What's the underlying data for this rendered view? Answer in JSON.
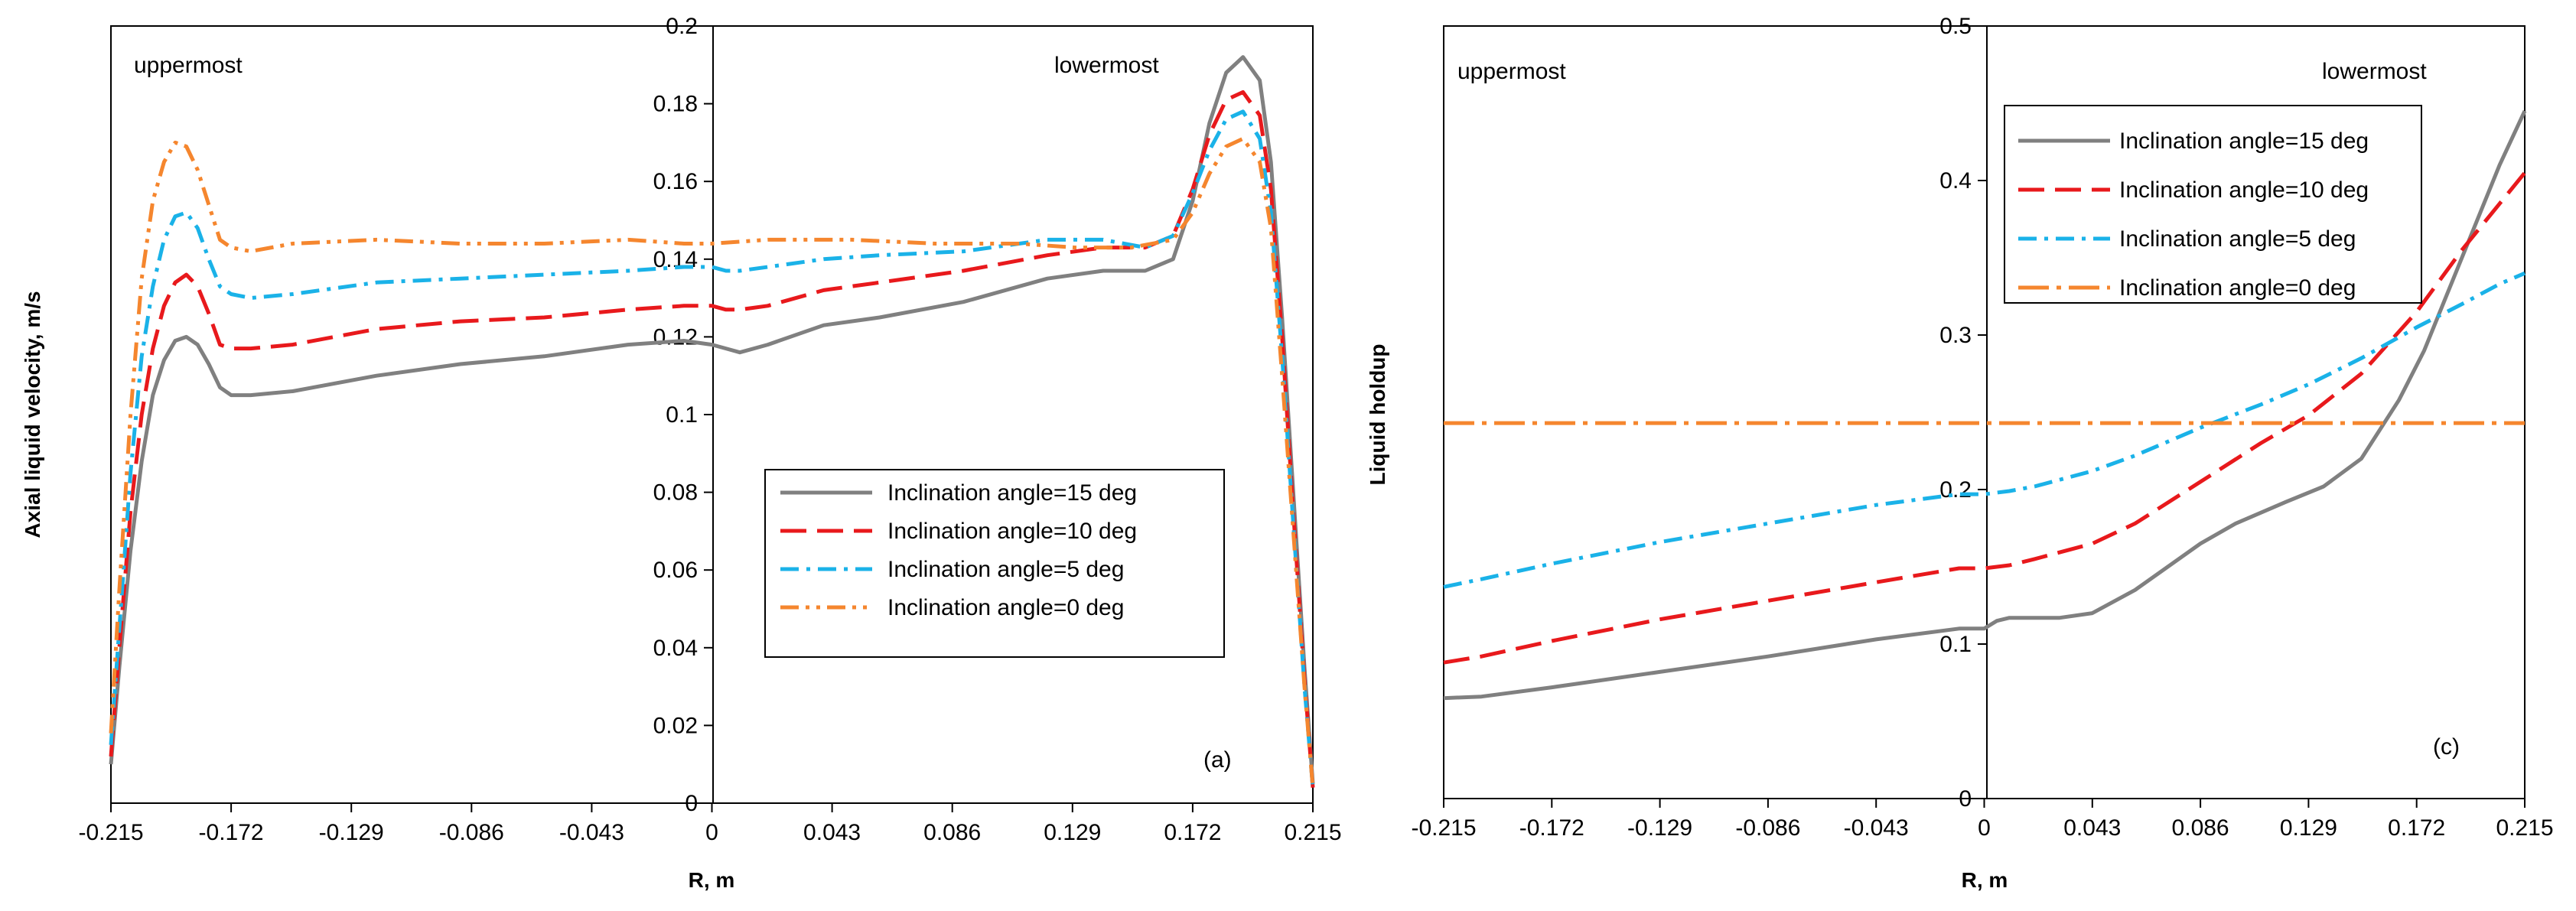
{
  "chart_data": [
    {
      "type": "line",
      "panel_label": "(a)",
      "xlabel": "R, m",
      "ylabel": "Axial liquid  velocity, m/s",
      "xlim": [
        -0.215,
        0.215
      ],
      "ylim": [
        0,
        0.2
      ],
      "xticks": [
        "-0.215",
        "-0.172",
        "-0.129",
        "-0.086",
        "-0.043",
        "0",
        "0.043",
        "0.086",
        "0.129",
        "0.172",
        "0.215"
      ],
      "yticks": [
        "0",
        "0.02",
        "0.04",
        "0.06",
        "0.08",
        "0.1",
        "0.12",
        "0.14",
        "0.16",
        "0.18",
        "0.2"
      ],
      "annotations": [
        "uppermost",
        "lowermost"
      ],
      "legend_position": "center-right",
      "series": [
        {
          "name": "Inclination angle=15 deg",
          "color": "#808080",
          "dash": "solid",
          "x": [
            -0.215,
            -0.212,
            -0.208,
            -0.204,
            -0.2,
            -0.196,
            -0.192,
            -0.188,
            -0.184,
            -0.18,
            -0.176,
            -0.172,
            -0.165,
            -0.15,
            -0.12,
            -0.09,
            -0.06,
            -0.03,
            -0.01,
            0,
            0.005,
            0.01,
            0.02,
            0.04,
            0.06,
            0.09,
            0.12,
            0.14,
            0.155,
            0.165,
            0.172,
            0.178,
            0.184,
            0.19,
            0.196,
            0.2,
            0.204,
            0.208,
            0.212,
            0.215
          ],
          "y": [
            0.01,
            0.035,
            0.065,
            0.088,
            0.105,
            0.114,
            0.119,
            0.12,
            0.118,
            0.113,
            0.107,
            0.105,
            0.105,
            0.106,
            0.11,
            0.113,
            0.115,
            0.118,
            0.119,
            0.118,
            0.117,
            0.116,
            0.118,
            0.123,
            0.125,
            0.129,
            0.135,
            0.137,
            0.137,
            0.14,
            0.155,
            0.175,
            0.188,
            0.192,
            0.186,
            0.165,
            0.125,
            0.08,
            0.035,
            0.005
          ]
        },
        {
          "name": "Inclination angle=10 deg",
          "color": "#e8191c",
          "dash": "long-dash",
          "x": [
            -0.215,
            -0.212,
            -0.208,
            -0.204,
            -0.2,
            -0.196,
            -0.192,
            -0.188,
            -0.184,
            -0.18,
            -0.176,
            -0.172,
            -0.165,
            -0.15,
            -0.12,
            -0.09,
            -0.06,
            -0.03,
            -0.01,
            0,
            0.005,
            0.01,
            0.02,
            0.04,
            0.06,
            0.09,
            0.12,
            0.14,
            0.155,
            0.165,
            0.172,
            0.178,
            0.184,
            0.19,
            0.196,
            0.2,
            0.204,
            0.208,
            0.212,
            0.215
          ],
          "y": [
            0.012,
            0.04,
            0.075,
            0.1,
            0.117,
            0.128,
            0.134,
            0.136,
            0.133,
            0.126,
            0.118,
            0.117,
            0.117,
            0.118,
            0.122,
            0.124,
            0.125,
            0.127,
            0.128,
            0.128,
            0.127,
            0.127,
            0.128,
            0.132,
            0.134,
            0.137,
            0.141,
            0.143,
            0.143,
            0.146,
            0.158,
            0.172,
            0.181,
            0.183,
            0.177,
            0.158,
            0.12,
            0.075,
            0.032,
            0.004
          ]
        },
        {
          "name": "Inclination angle=5 deg",
          "color": "#1ab2e8",
          "dash": "dash-dot",
          "x": [
            -0.215,
            -0.212,
            -0.208,
            -0.204,
            -0.2,
            -0.196,
            -0.192,
            -0.188,
            -0.184,
            -0.18,
            -0.176,
            -0.172,
            -0.165,
            -0.15,
            -0.12,
            -0.09,
            -0.06,
            -0.03,
            -0.01,
            0,
            0.005,
            0.01,
            0.02,
            0.04,
            0.06,
            0.09,
            0.12,
            0.14,
            0.155,
            0.165,
            0.172,
            0.178,
            0.184,
            0.19,
            0.196,
            0.2,
            0.204,
            0.208,
            0.212,
            0.215
          ],
          "y": [
            0.015,
            0.045,
            0.085,
            0.115,
            0.133,
            0.145,
            0.151,
            0.152,
            0.148,
            0.14,
            0.133,
            0.131,
            0.13,
            0.131,
            0.134,
            0.135,
            0.136,
            0.137,
            0.138,
            0.138,
            0.137,
            0.137,
            0.138,
            0.14,
            0.141,
            0.142,
            0.145,
            0.145,
            0.143,
            0.146,
            0.157,
            0.168,
            0.176,
            0.178,
            0.171,
            0.152,
            0.115,
            0.072,
            0.03,
            0.004
          ]
        },
        {
          "name": "Inclination angle=0 deg",
          "color": "#f5862e",
          "dash": "dash-dot-dot",
          "x": [
            -0.215,
            -0.212,
            -0.208,
            -0.204,
            -0.2,
            -0.196,
            -0.192,
            -0.188,
            -0.184,
            -0.18,
            -0.176,
            -0.172,
            -0.165,
            -0.15,
            -0.12,
            -0.09,
            -0.06,
            -0.03,
            -0.01,
            0,
            0.02,
            0.05,
            0.08,
            0.11,
            0.13,
            0.15,
            0.165,
            0.172,
            0.178,
            0.184,
            0.19,
            0.196,
            0.2,
            0.204,
            0.208,
            0.212,
            0.215
          ],
          "y": [
            0.018,
            0.055,
            0.1,
            0.135,
            0.155,
            0.165,
            0.17,
            0.169,
            0.163,
            0.154,
            0.145,
            0.143,
            0.142,
            0.144,
            0.145,
            0.144,
            0.144,
            0.145,
            0.144,
            0.144,
            0.145,
            0.145,
            0.144,
            0.144,
            0.143,
            0.143,
            0.145,
            0.152,
            0.162,
            0.169,
            0.171,
            0.165,
            0.148,
            0.11,
            0.07,
            0.03,
            0.004
          ]
        }
      ]
    },
    {
      "type": "line",
      "panel_label": "(c)",
      "xlabel": "R, m",
      "ylabel": "Liquid holdup",
      "xlim": [
        -0.215,
        0.215
      ],
      "ylim": [
        0,
        0.5
      ],
      "xticks": [
        "-0.215",
        "-0.172",
        "-0.129",
        "-0.086",
        "-0.043",
        "0",
        "0.043",
        "0.086",
        "0.129",
        "0.172",
        "0.215"
      ],
      "yticks": [
        "0",
        "0.1",
        "0.2",
        "0.3",
        "0.4",
        "0.5"
      ],
      "annotations": [
        "uppermost",
        "lowermost"
      ],
      "legend_position": "top-right",
      "series": [
        {
          "name": "Inclination angle=15 deg",
          "color": "#808080",
          "dash": "solid",
          "x": [
            -0.215,
            -0.2,
            -0.172,
            -0.129,
            -0.086,
            -0.043,
            -0.01,
            0,
            0.005,
            0.01,
            0.02,
            0.03,
            0.043,
            0.06,
            0.086,
            0.1,
            0.12,
            0.135,
            0.15,
            0.165,
            0.175,
            0.185,
            0.195,
            0.205,
            0.215
          ],
          "y": [
            0.065,
            0.066,
            0.072,
            0.082,
            0.092,
            0.103,
            0.11,
            0.11,
            0.115,
            0.117,
            0.117,
            0.117,
            0.12,
            0.135,
            0.165,
            0.178,
            0.192,
            0.202,
            0.22,
            0.258,
            0.29,
            0.33,
            0.37,
            0.41,
            0.445
          ]
        },
        {
          "name": "Inclination angle=10 deg",
          "color": "#e8191c",
          "dash": "long-dash",
          "x": [
            -0.215,
            -0.2,
            -0.172,
            -0.129,
            -0.086,
            -0.043,
            -0.01,
            0,
            0.01,
            0.02,
            0.043,
            0.06,
            0.086,
            0.11,
            0.129,
            0.15,
            0.172,
            0.19,
            0.205,
            0.215
          ],
          "y": [
            0.088,
            0.092,
            0.102,
            0.116,
            0.128,
            0.14,
            0.149,
            0.149,
            0.151,
            0.155,
            0.165,
            0.178,
            0.205,
            0.23,
            0.248,
            0.275,
            0.315,
            0.355,
            0.385,
            0.405
          ]
        },
        {
          "name": "Inclination angle=5 deg",
          "color": "#1ab2e8",
          "dash": "dash-dot",
          "x": [
            -0.215,
            -0.2,
            -0.172,
            -0.129,
            -0.086,
            -0.043,
            -0.01,
            0,
            0.01,
            0.02,
            0.043,
            0.06,
            0.086,
            0.11,
            0.129,
            0.15,
            0.172,
            0.19,
            0.205,
            0.215
          ],
          "y": [
            0.137,
            0.142,
            0.152,
            0.166,
            0.178,
            0.19,
            0.197,
            0.197,
            0.199,
            0.202,
            0.212,
            0.222,
            0.24,
            0.255,
            0.268,
            0.285,
            0.305,
            0.32,
            0.333,
            0.34
          ]
        },
        {
          "name": "Inclination angle=0 deg",
          "color": "#f5862e",
          "dash": "long-dash-dot",
          "x": [
            -0.215,
            0.215
          ],
          "y": [
            0.243,
            0.243
          ]
        }
      ]
    }
  ]
}
